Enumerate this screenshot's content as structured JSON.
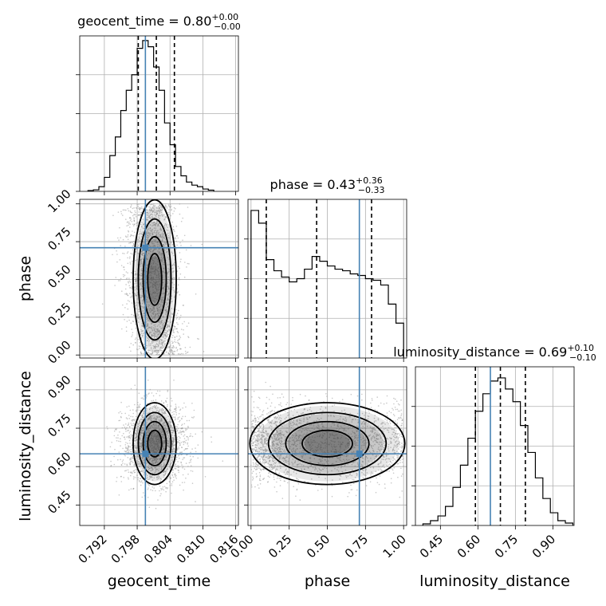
{
  "chart_data": {
    "type": "corner",
    "parameters": [
      "geocent_time",
      "phase",
      "luminosity_distance"
    ],
    "truth": {
      "geocent_time": 0.7995,
      "phase": 0.71,
      "luminosity_distance": 0.65
    },
    "marginals": [
      {
        "param": "geocent_time",
        "title": {
          "main": "geocent_time = 0.80",
          "sup": "+0.00",
          "sub": "−0.00"
        },
        "xlim": [
          0.7875,
          0.8165
        ],
        "quantiles": [
          0.7982,
          0.8015,
          0.8048
        ],
        "bin_edges": [
          0.789,
          0.79,
          0.791,
          0.792,
          0.793,
          0.794,
          0.795,
          0.796,
          0.797,
          0.798,
          0.799,
          0.8,
          0.801,
          0.802,
          0.803,
          0.804,
          0.805,
          0.806,
          0.807,
          0.808,
          0.809,
          0.81,
          0.811,
          0.812
        ],
        "density": [
          0.005,
          0.01,
          0.03,
          0.09,
          0.23,
          0.35,
          0.52,
          0.65,
          0.75,
          0.92,
          0.97,
          0.93,
          0.8,
          0.65,
          0.44,
          0.3,
          0.16,
          0.1,
          0.06,
          0.04,
          0.03,
          0.015,
          0.008
        ]
      },
      {
        "param": "phase",
        "title": {
          "main": "phase = 0.43",
          "sup": "+0.36",
          "sub": "−0.33"
        },
        "xlim": [
          -0.02,
          1.02
        ],
        "quantiles": [
          0.1,
          0.43,
          0.79
        ],
        "bin_edges": [
          0.0,
          0.05,
          0.1,
          0.15,
          0.2,
          0.25,
          0.3,
          0.35,
          0.4,
          0.45,
          0.5,
          0.55,
          0.6,
          0.65,
          0.7,
          0.75,
          0.8,
          0.85,
          0.9,
          0.95,
          1.0
        ],
        "density": [
          0.93,
          0.85,
          0.62,
          0.55,
          0.51,
          0.48,
          0.5,
          0.56,
          0.64,
          0.61,
          0.58,
          0.56,
          0.55,
          0.53,
          0.52,
          0.5,
          0.49,
          0.46,
          0.34,
          0.22
        ]
      },
      {
        "param": "luminosity_distance",
        "title": {
          "main": "luminosity_distance = 0.69",
          "sup": "+0.10",
          "sub": "−0.10"
        },
        "xlim": [
          0.35,
          0.985
        ],
        "quantiles": [
          0.59,
          0.69,
          0.79
        ],
        "bin_edges": [
          0.38,
          0.41,
          0.44,
          0.47,
          0.5,
          0.53,
          0.56,
          0.59,
          0.62,
          0.65,
          0.68,
          0.71,
          0.74,
          0.77,
          0.8,
          0.83,
          0.86,
          0.89,
          0.92,
          0.95,
          0.98
        ],
        "density": [
          0.01,
          0.03,
          0.06,
          0.12,
          0.24,
          0.38,
          0.55,
          0.72,
          0.83,
          0.91,
          0.93,
          0.86,
          0.78,
          0.63,
          0.46,
          0.3,
          0.17,
          0.08,
          0.03,
          0.015
        ]
      }
    ],
    "joint_panels": [
      {
        "x": "geocent_time",
        "y": "phase",
        "xlim": [
          0.7875,
          0.8165
        ],
        "ylim": [
          -0.02,
          1.03
        ]
      },
      {
        "x": "geocent_time",
        "y": "luminosity_distance",
        "xlim": [
          0.7875,
          0.8165
        ],
        "ylim": [
          0.37,
          0.99
        ]
      },
      {
        "x": "phase",
        "y": "luminosity_distance",
        "xlim": [
          -0.02,
          1.02
        ],
        "ylim": [
          0.37,
          0.99
        ]
      }
    ],
    "axes": {
      "geocent_time": {
        "label": "geocent_time",
        "ticks": [
          0.792,
          0.798,
          0.804,
          0.81,
          0.816
        ],
        "tick_labels": [
          "0.792",
          "0.798",
          "0.804",
          "0.810",
          "0.816"
        ]
      },
      "phase": {
        "label": "phase",
        "ticks": [
          0.0,
          0.25,
          0.5,
          0.75,
          1.0
        ],
        "tick_labels": [
          "0.00",
          "0.25",
          "0.50",
          "0.75",
          "1.00"
        ]
      },
      "luminosity_distance": {
        "label": "luminosity_distance",
        "ticks": [
          0.45,
          0.6,
          0.75,
          0.9
        ],
        "tick_labels": [
          "0.45",
          "0.60",
          "0.75",
          "0.90"
        ]
      }
    },
    "grid": true,
    "colors": {
      "truth": "#4682b4",
      "hist": "#000000",
      "quantile": "#000000",
      "points": "#9a9a9a"
    }
  }
}
